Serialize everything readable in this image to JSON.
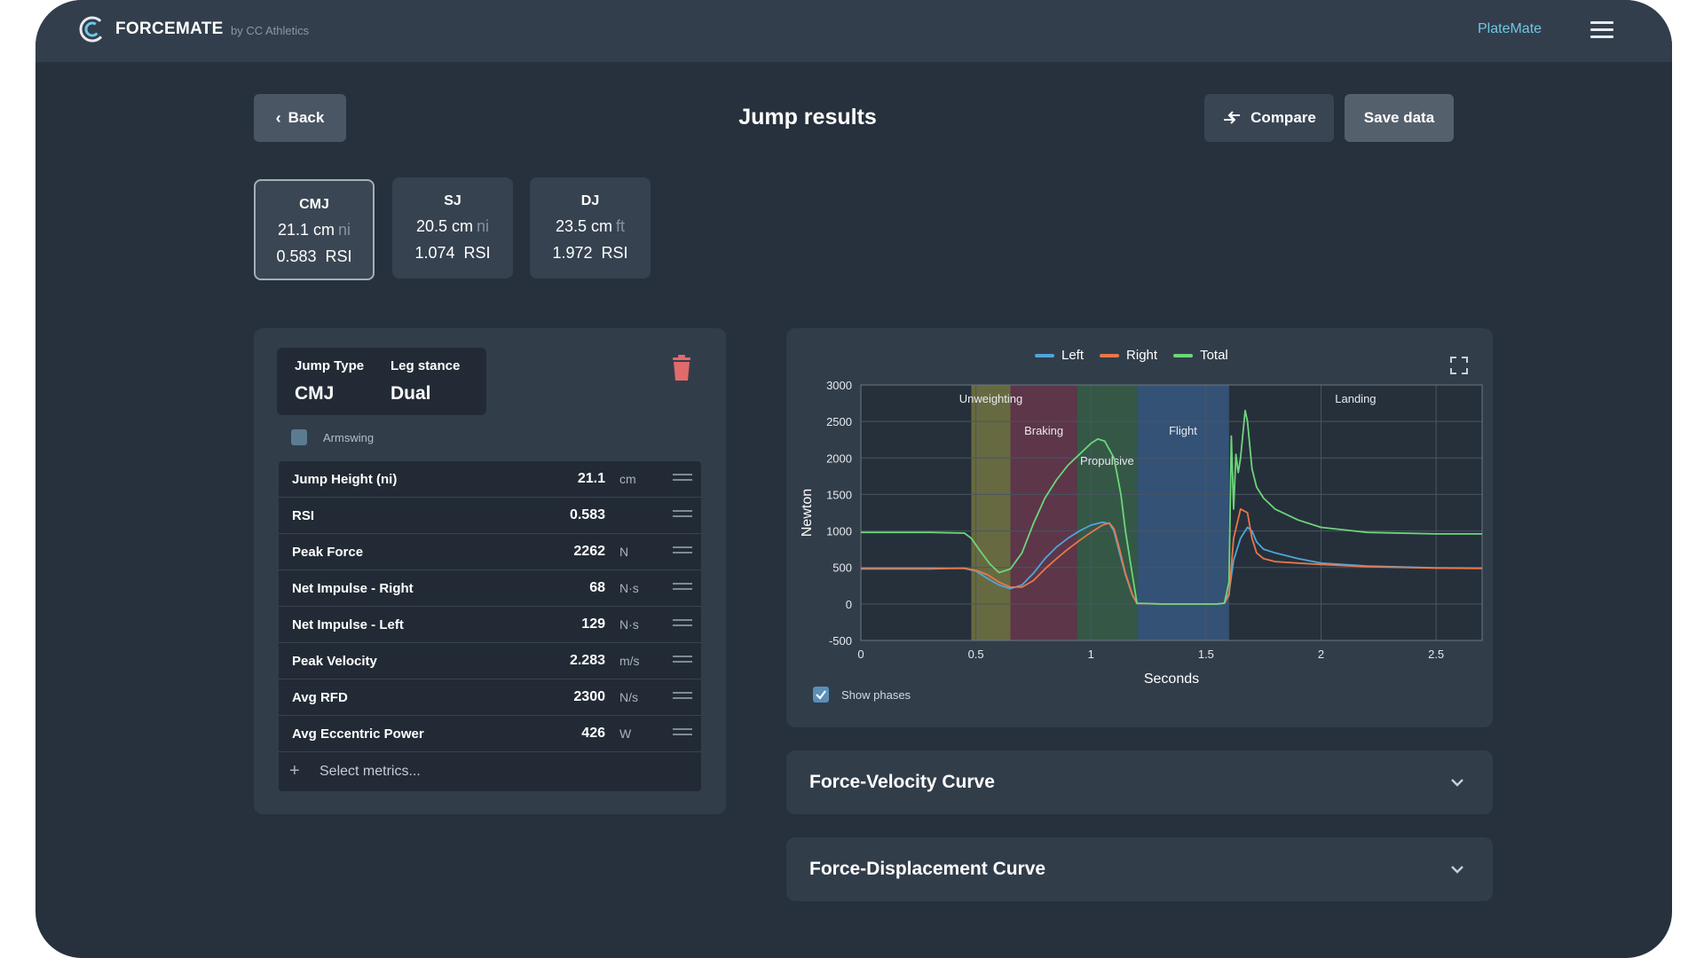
{
  "header": {
    "brand": "FORCEMATE",
    "brand_sub": "by CC Athletics",
    "app_link": "PlateMate"
  },
  "toolbar": {
    "back_label": "Back",
    "title": "Jump results",
    "compare_label": "Compare",
    "save_label": "Save data"
  },
  "jumps": [
    {
      "name": "CMJ",
      "height": "21.1 cm",
      "height_unit": "ni",
      "rsi": "0.583",
      "rsi_label": "RSI"
    },
    {
      "name": "SJ",
      "height": "20.5 cm",
      "height_unit": "ni",
      "rsi": "1.074",
      "rsi_label": "RSI"
    },
    {
      "name": "DJ",
      "height": "23.5 cm",
      "height_unit": "ft",
      "rsi": "1.972",
      "rsi_label": "RSI"
    }
  ],
  "detail": {
    "jump_type_label": "Jump Type",
    "jump_type": "CMJ",
    "leg_stance_label": "Leg stance",
    "leg_stance": "Dual",
    "armswing_label": "Armswing",
    "select_metrics": "Select metrics...",
    "metrics": [
      {
        "name": "Jump Height (ni)",
        "value": "21.1",
        "unit": "cm"
      },
      {
        "name": "RSI",
        "value": "0.583",
        "unit": ""
      },
      {
        "name": "Peak Force",
        "value": "2262",
        "unit": "N"
      },
      {
        "name": "Net Impulse - Right",
        "value": "68",
        "unit": "N·s"
      },
      {
        "name": "Net Impulse - Left",
        "value": "129",
        "unit": "N·s"
      },
      {
        "name": "Peak Velocity",
        "value": "2.283",
        "unit": "m/s"
      },
      {
        "name": "Avg RFD",
        "value": "2300",
        "unit": "N/s"
      },
      {
        "name": "Avg Eccentric Power",
        "value": "426",
        "unit": "W"
      }
    ]
  },
  "chart_panel": {
    "show_phases_label": "Show phases",
    "show_phases_checked": true
  },
  "accordions": {
    "fv_title": "Force-Velocity Curve",
    "fd_title": "Force-Displacement Curve"
  },
  "colors": {
    "left": "#4fa6d9",
    "right": "#e8774a",
    "total": "#6cd67a",
    "delete": "#e06b6b",
    "accent": "#6ec7e6"
  },
  "chart_data": {
    "type": "line",
    "xlabel": "Seconds",
    "ylabel": "Newton",
    "xlim": [
      0,
      2.7
    ],
    "ylim": [
      -500,
      3000
    ],
    "x_ticks": [
      0,
      0.5,
      1,
      1.5,
      2,
      2.5
    ],
    "y_ticks": [
      3000,
      2500,
      2000,
      1500,
      1000,
      500,
      0,
      -500
    ],
    "grid": true,
    "legend_position": "top-center",
    "phases": [
      {
        "name": "Unweighting",
        "start": 0.48,
        "end": 0.65,
        "color": "#9c9a46"
      },
      {
        "name": "Braking",
        "start": 0.65,
        "end": 0.94,
        "color": "#8a3c55"
      },
      {
        "name": "Propulsive",
        "start": 0.94,
        "end": 1.2,
        "color": "#3f7a4f"
      },
      {
        "name": "Flight",
        "start": 1.2,
        "end": 1.6,
        "color": "#3f6fa5"
      },
      {
        "name": "Landing",
        "start": 1.6,
        "end": 2.7,
        "color": "none"
      }
    ],
    "series": [
      {
        "name": "Left",
        "x": [
          0,
          0.3,
          0.45,
          0.5,
          0.55,
          0.6,
          0.65,
          0.7,
          0.75,
          0.8,
          0.85,
          0.9,
          0.95,
          1.0,
          1.05,
          1.08,
          1.1,
          1.12,
          1.15,
          1.18,
          1.2,
          1.3,
          1.4,
          1.5,
          1.55,
          1.58,
          1.6,
          1.62,
          1.65,
          1.68,
          1.7,
          1.72,
          1.75,
          1.8,
          1.9,
          2.0,
          2.2,
          2.5,
          2.7
        ],
        "y": [
          490,
          490,
          485,
          450,
          350,
          260,
          210,
          260,
          420,
          620,
          780,
          900,
          1000,
          1080,
          1120,
          1100,
          1000,
          750,
          400,
          120,
          5,
          0,
          0,
          0,
          0,
          10,
          150,
          600,
          900,
          1050,
          1000,
          850,
          750,
          700,
          620,
          560,
          520,
          495,
          490
        ]
      },
      {
        "name": "Right",
        "x": [
          0,
          0.3,
          0.45,
          0.5,
          0.55,
          0.6,
          0.65,
          0.7,
          0.75,
          0.8,
          0.85,
          0.9,
          0.95,
          1.0,
          1.05,
          1.08,
          1.1,
          1.12,
          1.15,
          1.18,
          1.2,
          1.3,
          1.4,
          1.5,
          1.55,
          1.58,
          1.6,
          1.62,
          1.65,
          1.68,
          1.7,
          1.72,
          1.75,
          1.8,
          1.9,
          2.0,
          2.2,
          2.5,
          2.7
        ],
        "y": [
          480,
          480,
          490,
          460,
          400,
          300,
          230,
          230,
          320,
          480,
          620,
          750,
          870,
          980,
          1080,
          1110,
          1030,
          800,
          420,
          130,
          5,
          0,
          0,
          0,
          0,
          10,
          120,
          900,
          1300,
          1250,
          900,
          700,
          620,
          580,
          560,
          540,
          510,
          490,
          485
        ]
      },
      {
        "name": "Total",
        "x": [
          0,
          0.3,
          0.45,
          0.48,
          0.52,
          0.56,
          0.6,
          0.65,
          0.7,
          0.75,
          0.8,
          0.85,
          0.9,
          0.95,
          1.0,
          1.03,
          1.06,
          1.1,
          1.13,
          1.15,
          1.18,
          1.2,
          1.3,
          1.4,
          1.5,
          1.55,
          1.58,
          1.6,
          1.61,
          1.62,
          1.63,
          1.64,
          1.65,
          1.67,
          1.68,
          1.7,
          1.72,
          1.75,
          1.8,
          1.9,
          2.0,
          2.2,
          2.5,
          2.7
        ],
        "y": [
          980,
          980,
          970,
          900,
          720,
          550,
          430,
          480,
          700,
          1100,
          1450,
          1700,
          1900,
          2050,
          2200,
          2260,
          2230,
          2000,
          1500,
          1000,
          400,
          10,
          0,
          0,
          0,
          0,
          10,
          300,
          2300,
          1300,
          2050,
          1800,
          2000,
          2650,
          2500,
          1850,
          1600,
          1450,
          1300,
          1150,
          1050,
          980,
          960,
          960
        ]
      }
    ]
  }
}
